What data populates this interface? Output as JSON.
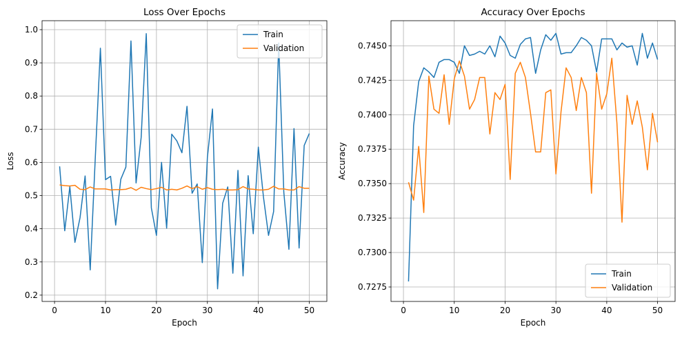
{
  "colors": {
    "train": "#1f77b4",
    "validation": "#ff7f0e",
    "grid": "#b0b0b0"
  },
  "chart_data": [
    {
      "type": "line",
      "title": "Loss Over Epochs",
      "xlabel": "Epoch",
      "ylabel": "Loss",
      "xlim": [
        -2.45,
        53.45
      ],
      "ylim": [
        0.181,
        1.027
      ],
      "xticks": [
        0,
        10,
        20,
        30,
        40,
        50
      ],
      "yticks": [
        0.2,
        0.3,
        0.4,
        0.5,
        0.6,
        0.7,
        0.8,
        0.9,
        1.0
      ],
      "ytick_labels": [
        "0.2",
        "0.3",
        "0.4",
        "0.5",
        "0.6",
        "0.7",
        "0.8",
        "0.9",
        "1.0"
      ],
      "grid": true,
      "legend_position": "upper-right",
      "x": [
        1,
        2,
        3,
        4,
        5,
        6,
        7,
        8,
        9,
        10,
        11,
        12,
        13,
        14,
        15,
        16,
        17,
        18,
        19,
        20,
        21,
        22,
        23,
        24,
        25,
        26,
        27,
        28,
        29,
        30,
        31,
        32,
        33,
        34,
        35,
        36,
        37,
        38,
        39,
        40,
        41,
        42,
        43,
        44,
        45,
        46,
        47,
        48,
        49,
        50
      ],
      "series": [
        {
          "name": "Train",
          "color_key": "train",
          "values": [
            0.588,
            0.394,
            0.527,
            0.359,
            0.433,
            0.559,
            0.276,
            0.615,
            0.944,
            0.548,
            0.558,
            0.411,
            0.549,
            0.586,
            0.966,
            0.538,
            0.675,
            0.988,
            0.463,
            0.38,
            0.6,
            0.402,
            0.685,
            0.665,
            0.629,
            0.769,
            0.507,
            0.535,
            0.298,
            0.615,
            0.761,
            0.219,
            0.477,
            0.526,
            0.266,
            0.576,
            0.258,
            0.56,
            0.385,
            0.646,
            0.496,
            0.38,
            0.452,
            0.96,
            0.51,
            0.338,
            0.702,
            0.342,
            0.651,
            0.687
          ]
        },
        {
          "name": "Validation",
          "color_key": "validation",
          "values": [
            0.532,
            0.53,
            0.529,
            0.531,
            0.519,
            0.518,
            0.526,
            0.52,
            0.52,
            0.52,
            0.517,
            0.518,
            0.518,
            0.519,
            0.524,
            0.516,
            0.525,
            0.521,
            0.518,
            0.521,
            0.525,
            0.517,
            0.519,
            0.517,
            0.522,
            0.529,
            0.521,
            0.527,
            0.519,
            0.524,
            0.519,
            0.518,
            0.519,
            0.517,
            0.517,
            0.518,
            0.527,
            0.52,
            0.519,
            0.517,
            0.517,
            0.519,
            0.528,
            0.52,
            0.52,
            0.517,
            0.517,
            0.527,
            0.522,
            0.522
          ]
        }
      ]
    },
    {
      "type": "line",
      "title": "Accuracy Over Epochs",
      "xlabel": "Epoch",
      "ylabel": "Accuracy",
      "xlim": [
        -2.45,
        53.45
      ],
      "ylim": [
        0.72645,
        0.74682
      ],
      "xticks": [
        0,
        10,
        20,
        30,
        40,
        50
      ],
      "yticks": [
        0.7275,
        0.73,
        0.7325,
        0.735,
        0.7375,
        0.74,
        0.7425,
        0.745
      ],
      "ytick_labels": [
        "0.7275",
        "0.7300",
        "0.7325",
        "0.7350",
        "0.7375",
        "0.7400",
        "0.7425",
        "0.7450"
      ],
      "grid": true,
      "legend_position": "lower-right",
      "x": [
        1,
        2,
        3,
        4,
        5,
        6,
        7,
        8,
        9,
        10,
        11,
        12,
        13,
        14,
        15,
        16,
        17,
        18,
        19,
        20,
        21,
        22,
        23,
        24,
        25,
        26,
        27,
        28,
        29,
        30,
        31,
        32,
        33,
        34,
        35,
        36,
        37,
        38,
        39,
        40,
        41,
        42,
        43,
        44,
        45,
        46,
        47,
        48,
        49,
        50
      ],
      "series": [
        {
          "name": "Train",
          "color_key": "train",
          "values": [
            0.7279,
            0.7392,
            0.7424,
            0.7434,
            0.7431,
            0.7427,
            0.7438,
            0.744,
            0.744,
            0.7438,
            0.743,
            0.745,
            0.7443,
            0.7444,
            0.7446,
            0.7444,
            0.745,
            0.7442,
            0.7457,
            0.7452,
            0.7443,
            0.7441,
            0.7451,
            0.7455,
            0.7456,
            0.743,
            0.7447,
            0.7458,
            0.7454,
            0.7459,
            0.7444,
            0.7445,
            0.7445,
            0.745,
            0.7456,
            0.7454,
            0.745,
            0.7431,
            0.7455,
            0.7455,
            0.7455,
            0.7447,
            0.7452,
            0.7449,
            0.745,
            0.7436,
            0.7459,
            0.7441,
            0.7452,
            0.744
          ]
        },
        {
          "name": "Validation",
          "color_key": "validation",
          "values": [
            0.7351,
            0.7338,
            0.7377,
            0.7329,
            0.7428,
            0.7404,
            0.7401,
            0.7429,
            0.7393,
            0.7426,
            0.7439,
            0.7428,
            0.7404,
            0.7411,
            0.7427,
            0.7427,
            0.7386,
            0.7416,
            0.7411,
            0.7422,
            0.7353,
            0.743,
            0.7438,
            0.7427,
            0.7401,
            0.7373,
            0.7373,
            0.7416,
            0.7418,
            0.7357,
            0.7402,
            0.7434,
            0.7427,
            0.7403,
            0.7427,
            0.7416,
            0.7343,
            0.743,
            0.7404,
            0.7415,
            0.7441,
            0.7394,
            0.7322,
            0.7414,
            0.7393,
            0.741,
            0.7391,
            0.736,
            0.7401,
            0.738
          ]
        }
      ]
    }
  ]
}
